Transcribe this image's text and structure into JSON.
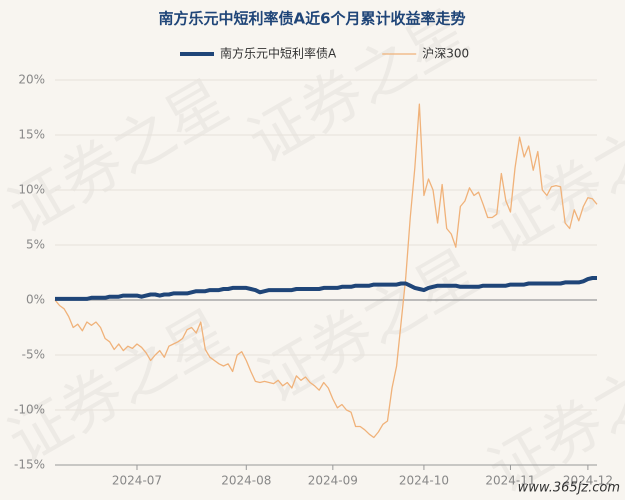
{
  "chart_data": {
    "type": "line",
    "title": "南方乐元中短利率债A近6个月累计收益率走势",
    "watermark": "证券之星",
    "footer": "www.365jz.com",
    "categories": [
      null,
      null,
      null,
      null,
      null,
      null,
      null,
      null,
      null,
      null,
      null,
      null,
      null,
      null,
      null,
      null,
      null,
      null,
      "2024-07",
      null,
      null,
      null,
      null,
      null,
      null,
      null,
      null,
      null,
      null,
      null,
      null,
      null,
      null,
      null,
      null,
      null,
      null,
      null,
      null,
      null,
      null,
      null,
      "2024-08",
      null,
      null,
      null,
      null,
      null,
      null,
      null,
      null,
      null,
      null,
      null,
      null,
      null,
      null,
      null,
      null,
      null,
      null,
      "2024-09",
      null,
      null,
      null,
      null,
      null,
      null,
      null,
      null,
      null,
      null,
      null,
      null,
      null,
      null,
      null,
      null,
      null,
      null,
      null,
      "2024-10",
      null,
      null,
      null,
      null,
      null,
      null,
      null,
      null,
      null,
      null,
      null,
      null,
      null,
      null,
      null,
      null,
      null,
      null,
      "2024-11",
      null,
      null,
      null,
      null,
      null,
      null,
      null,
      null,
      null,
      null,
      null,
      null,
      null,
      null,
      null,
      null,
      "2024-12",
      null,
      null
    ],
    "series": [
      {
        "name": "南方乐元中短利率债A",
        "color": "#1f4578",
        "width": 4,
        "values": [
          0.1,
          0.1,
          0.1,
          0.1,
          0.1,
          0.1,
          0.1,
          0.1,
          0.2,
          0.2,
          0.2,
          0.2,
          0.3,
          0.3,
          0.3,
          0.4,
          0.4,
          0.4,
          0.4,
          0.3,
          0.4,
          0.5,
          0.5,
          0.4,
          0.5,
          0.5,
          0.6,
          0.6,
          0.6,
          0.6,
          0.7,
          0.8,
          0.8,
          0.8,
          0.9,
          0.9,
          0.9,
          1.0,
          1.0,
          1.1,
          1.1,
          1.1,
          1.1,
          1.0,
          0.9,
          0.7,
          0.8,
          0.9,
          0.9,
          0.9,
          0.9,
          0.9,
          0.9,
          1.0,
          1.0,
          1.0,
          1.0,
          1.0,
          1.0,
          1.1,
          1.1,
          1.1,
          1.1,
          1.2,
          1.2,
          1.2,
          1.3,
          1.3,
          1.3,
          1.3,
          1.4,
          1.4,
          1.4,
          1.4,
          1.4,
          1.4,
          1.5,
          1.5,
          1.3,
          1.1,
          1.0,
          0.9,
          1.1,
          1.2,
          1.3,
          1.3,
          1.3,
          1.3,
          1.3,
          1.2,
          1.2,
          1.2,
          1.2,
          1.2,
          1.3,
          1.3,
          1.3,
          1.3,
          1.3,
          1.3,
          1.4,
          1.4,
          1.4,
          1.4,
          1.5,
          1.5,
          1.5,
          1.5,
          1.5,
          1.5,
          1.5,
          1.5,
          1.6,
          1.6,
          1.6,
          1.6,
          1.7,
          1.9,
          2.0,
          2.0
        ]
      },
      {
        "name": "沪深300",
        "color": "#f0b27a",
        "width": 1.3,
        "values": [
          0,
          -0.5,
          -0.8,
          -1.5,
          -2.5,
          -2.2,
          -2.8,
          -2.0,
          -2.3,
          -2.0,
          -2.5,
          -3.5,
          -3.8,
          -4.5,
          -4.0,
          -4.6,
          -4.2,
          -4.4,
          -4.0,
          -4.3,
          -4.8,
          -5.5,
          -5.0,
          -4.6,
          -5.2,
          -4.2,
          -4.0,
          -3.8,
          -3.5,
          -2.7,
          -2.5,
          -3.0,
          -2.0,
          -4.5,
          -5.2,
          -5.5,
          -5.8,
          -6.0,
          -5.8,
          -6.5,
          -5.0,
          -4.7,
          -5.5,
          -6.5,
          -7.4,
          -7.5,
          -7.4,
          -7.5,
          -7.6,
          -7.3,
          -7.8,
          -7.5,
          -8.0,
          -6.9,
          -7.3,
          -7.0,
          -7.5,
          -7.8,
          -8.2,
          -7.5,
          -8.0,
          -9.0,
          -9.8,
          -9.5,
          -10.0,
          -10.2,
          -11.5,
          -11.5,
          -11.8,
          -12.2,
          -12.5,
          -12.0,
          -11.3,
          -11.0,
          -8.0,
          -6.0,
          -2.0,
          2.0,
          7.5,
          12.0,
          17.8,
          9.5,
          11.0,
          10.0,
          7.0,
          10.5,
          6.5,
          6.0,
          4.8,
          8.5,
          9.0,
          10.2,
          9.5,
          9.8,
          8.7,
          7.5,
          7.5,
          7.8,
          11.5,
          9.0,
          8.0,
          12.0,
          14.8,
          13.0,
          14.0,
          11.8,
          13.5,
          10.0,
          9.5,
          10.3,
          10.4,
          10.3,
          7.0,
          6.5,
          8.2,
          7.2,
          8.5,
          9.3,
          9.2,
          8.7
        ]
      }
    ],
    "ylim": [
      -15,
      20
    ],
    "yticks": [
      {
        "value": -15,
        "label": "-15%"
      },
      {
        "value": -10,
        "label": "-10%"
      },
      {
        "value": -5,
        "label": "-5%"
      },
      {
        "value": 0,
        "label": "0%"
      },
      {
        "value": 5,
        "label": "5%"
      },
      {
        "value": 10,
        "label": "10%"
      },
      {
        "value": 15,
        "label": "15%"
      },
      {
        "value": 20,
        "label": "20%"
      }
    ],
    "grid": true,
    "legend": "top"
  }
}
